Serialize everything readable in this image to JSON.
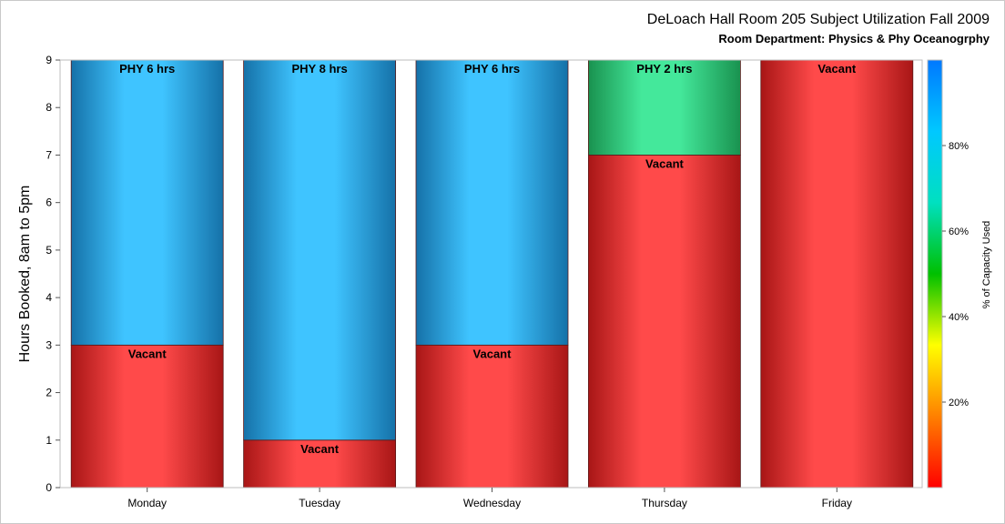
{
  "title": "DeLoach Hall Room 205 Subject Utilization Fall 2009",
  "subtitle": "Room Department:  Physics & Phy Oceanogrphy",
  "chart_data": {
    "type": "bar",
    "stacked": true,
    "title": "DeLoach Hall Room 205 Subject Utilization Fall 2009",
    "subtitle": "Room Department:  Physics & Phy Oceanogrphy",
    "xlabel": "",
    "ylabel": "Hours Booked, 8am to 5pm",
    "ylim": [
      0,
      9
    ],
    "yticks": [
      0,
      1,
      2,
      3,
      4,
      5,
      6,
      7,
      8,
      9
    ],
    "grid": false,
    "categories": [
      "Monday",
      "Tuesday",
      "Wednesday",
      "Thursday",
      "Friday"
    ],
    "segments": [
      [
        {
          "label": "Vacant",
          "hours": 3,
          "color": "red"
        },
        {
          "label": "PHY 6 hrs",
          "hours": 6,
          "color": "blue"
        }
      ],
      [
        {
          "label": "Vacant",
          "hours": 1,
          "color": "red"
        },
        {
          "label": "PHY 8 hrs",
          "hours": 8,
          "color": "blue"
        }
      ],
      [
        {
          "label": "Vacant",
          "hours": 3,
          "color": "red"
        },
        {
          "label": "PHY 6 hrs",
          "hours": 6,
          "color": "blue"
        }
      ],
      [
        {
          "label": "Vacant",
          "hours": 7,
          "color": "red"
        },
        {
          "label": "PHY 2 hrs",
          "hours": 2,
          "color": "green"
        }
      ],
      [
        {
          "label": "Vacant",
          "hours": 9,
          "color": "red"
        }
      ]
    ],
    "colorbar": {
      "label": "% of Capacity Used",
      "range": [
        0,
        100
      ],
      "ticks": [
        "20%",
        "40%",
        "60%",
        "80%"
      ],
      "stops": [
        "#ff0000",
        "#ff8000",
        "#ffff00",
        "#00c000",
        "#00e0c0",
        "#00c8ff",
        "#0078ff"
      ]
    },
    "colors": {
      "red": "#ff4a4a",
      "red_dark": "#a81616",
      "blue": "#3fc4ff",
      "blue_dark": "#1571a8",
      "green": "#44e89b",
      "green_dark": "#19924f"
    }
  }
}
